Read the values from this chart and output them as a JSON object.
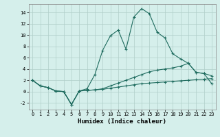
{
  "xlabel": "Humidex (Indice chaleur)",
  "background_color": "#d5efeb",
  "grid_color": "#b0cec9",
  "line_color": "#1e6b5e",
  "xlim": [
    -0.5,
    23.5
  ],
  "ylim": [
    -3.2,
    15.5
  ],
  "x_ticks": [
    0,
    1,
    2,
    3,
    4,
    5,
    6,
    7,
    8,
    9,
    10,
    11,
    12,
    13,
    14,
    15,
    16,
    17,
    18,
    19,
    20,
    21,
    22,
    23
  ],
  "y_ticks": [
    -2,
    0,
    2,
    4,
    6,
    8,
    10,
    12,
    14
  ],
  "line_main_x": [
    0,
    1,
    2,
    3,
    4,
    5,
    6,
    7,
    8,
    9,
    10,
    11,
    12,
    13,
    14,
    15,
    16,
    17,
    18,
    19,
    20,
    21,
    22,
    23
  ],
  "line_main_y": [
    2.0,
    1.0,
    0.7,
    0.1,
    0.0,
    -2.3,
    0.1,
    0.5,
    3.0,
    7.3,
    9.9,
    10.9,
    7.5,
    13.2,
    14.7,
    13.8,
    10.5,
    9.5,
    6.7,
    5.8,
    5.0,
    3.4,
    3.2,
    2.8
  ],
  "line_low_x": [
    0,
    1,
    2,
    3,
    4,
    5,
    6,
    7,
    8,
    9,
    10,
    11,
    12,
    13,
    14,
    15,
    16,
    17,
    18,
    19,
    20,
    21,
    22,
    23
  ],
  "line_low_y": [
    2.0,
    1.0,
    0.7,
    0.1,
    0.0,
    -2.3,
    0.1,
    0.2,
    0.3,
    0.4,
    0.6,
    0.8,
    1.0,
    1.2,
    1.4,
    1.5,
    1.6,
    1.7,
    1.8,
    1.9,
    2.0,
    2.1,
    2.2,
    2.3
  ],
  "line_mid_x": [
    0,
    1,
    2,
    3,
    4,
    5,
    6,
    7,
    8,
    9,
    10,
    11,
    12,
    13,
    14,
    15,
    16,
    17,
    18,
    19,
    20,
    21,
    22,
    23
  ],
  "line_mid_y": [
    2.0,
    1.0,
    0.7,
    0.1,
    0.0,
    -2.3,
    0.1,
    0.2,
    0.3,
    0.5,
    1.0,
    1.5,
    2.0,
    2.5,
    3.0,
    3.5,
    3.8,
    4.0,
    4.2,
    4.5,
    5.0,
    3.4,
    3.2,
    1.4
  ],
  "tick_fontsize": 5.0,
  "xlabel_fontsize": 6.5,
  "linewidth": 0.8,
  "markersize": 2.8,
  "markeredgewidth": 0.8
}
